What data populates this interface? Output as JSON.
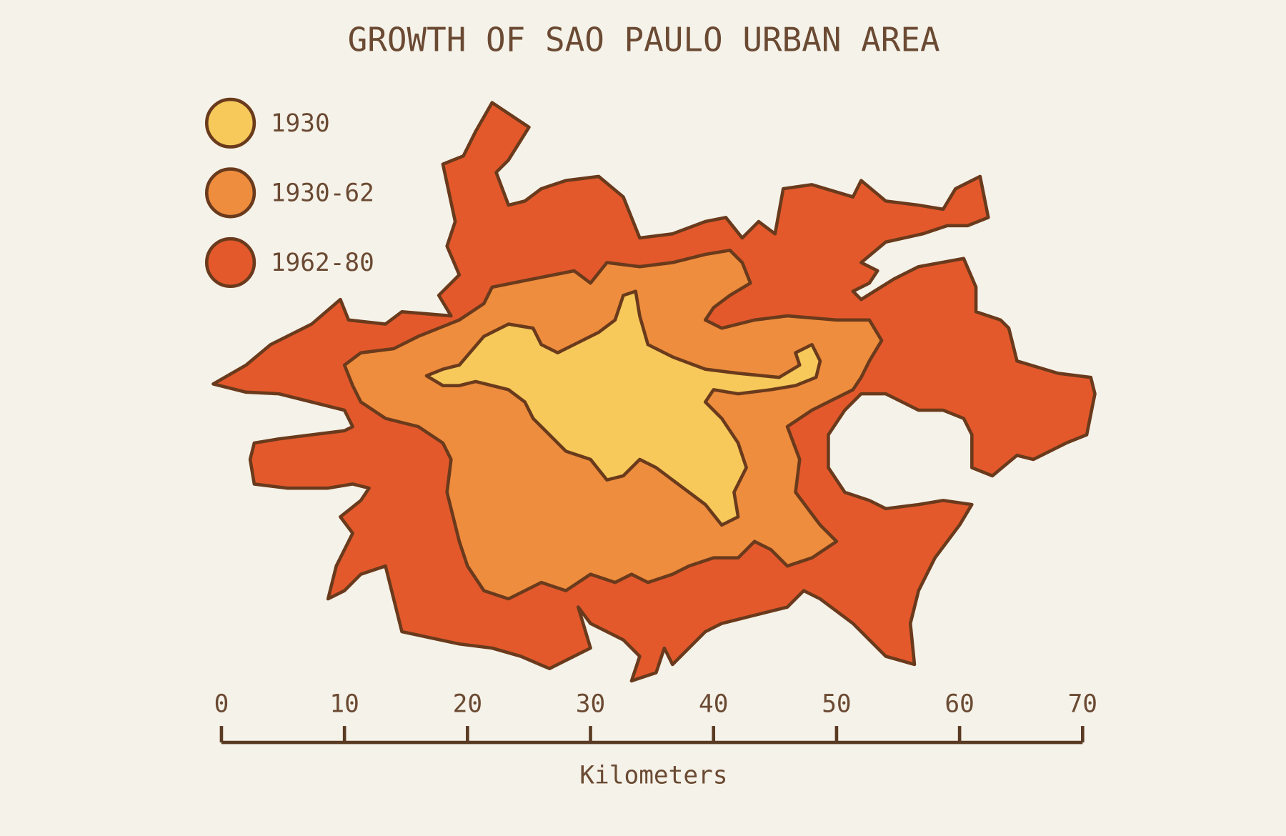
{
  "title": "GROWTH OF SAO PAULO URBAN AREA",
  "legend": [
    {
      "label": "1930",
      "color": "#f7c95b"
    },
    {
      "label": "1930-62",
      "color": "#ee8d3e"
    },
    {
      "label": "1962-80",
      "color": "#e3592c"
    }
  ],
  "scale_bar": {
    "range": [
      0,
      70
    ],
    "ticks": [
      0,
      10,
      20,
      30,
      40,
      50,
      60,
      70
    ],
    "label": "Kilometers"
  }
}
